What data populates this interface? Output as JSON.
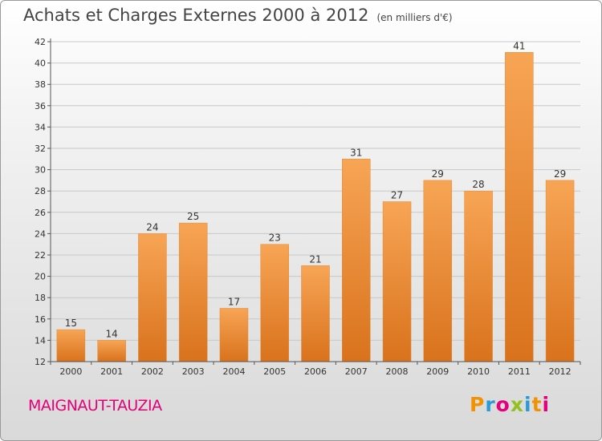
{
  "header": {
    "title": "Achats et Charges Externes 2000 à 2012",
    "unit": "(en milliers d'€)"
  },
  "footer": {
    "place": "MAIGNAUT-TAUZIA",
    "logo_letters": [
      "P",
      "r",
      "o",
      "x",
      "i",
      "t",
      "i"
    ],
    "logo_colors": [
      "#f39200",
      "#2a9bd7",
      "#e6007e",
      "#95c11f",
      "#2a9bd7",
      "#f39200",
      "#e6007e"
    ]
  },
  "colors": {
    "bar_top": "#f7a555",
    "bar_bottom": "#d9721c",
    "place": "#e3007a"
  },
  "chart_data": {
    "type": "bar",
    "title": "Achats et Charges Externes 2000 à 2012",
    "subtitle": "(en milliers d'€)",
    "categories": [
      "2000",
      "2001",
      "2002",
      "2003",
      "2004",
      "2005",
      "2006",
      "2007",
      "2008",
      "2009",
      "2010",
      "2011",
      "2012"
    ],
    "values": [
      15,
      14,
      24,
      25,
      17,
      23,
      21,
      31,
      27,
      29,
      28,
      41,
      29
    ],
    "ylim": [
      12,
      42
    ],
    "yticks": [
      12,
      14,
      16,
      18,
      20,
      22,
      24,
      26,
      28,
      30,
      32,
      34,
      36,
      38,
      40,
      42
    ],
    "grid": true,
    "data_labels": true
  }
}
